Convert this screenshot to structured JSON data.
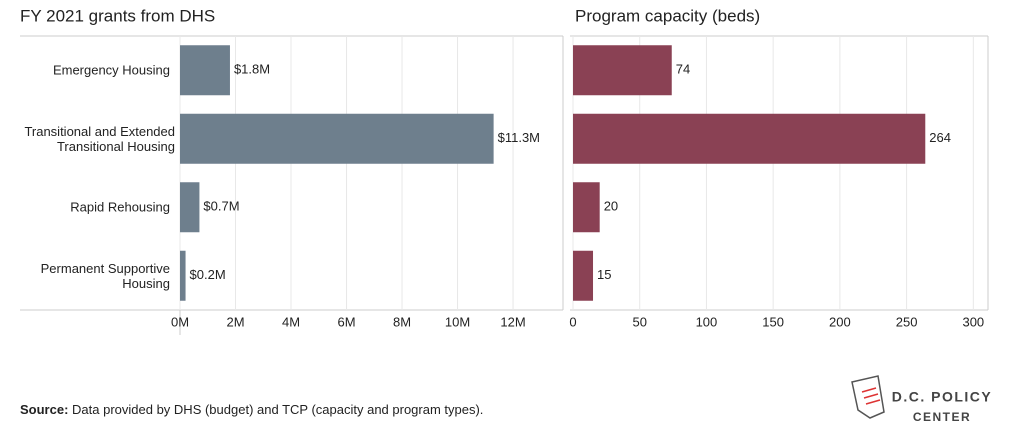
{
  "chart_data": [
    {
      "type": "bar",
      "orientation": "horizontal",
      "title": "FY 2021 grants from DHS",
      "categories": [
        "Emergency Housing",
        "Transitional and Extended Transitional Housing",
        "Rapid Rehousing",
        "Permanent Supportive Housing"
      ],
      "values": [
        1.8,
        11.3,
        0.7,
        0.2
      ],
      "value_labels": [
        "$1.8M",
        "$11.3M",
        "$0.7M",
        "$0.2M"
      ],
      "color": "#6e7f8d",
      "xlim": [
        0,
        13.8
      ],
      "xticks": [
        {
          "value": 0,
          "label": "0M"
        },
        {
          "value": 2,
          "label": "2M"
        },
        {
          "value": 4,
          "label": "4M"
        },
        {
          "value": 6,
          "label": "6M"
        },
        {
          "value": 8,
          "label": "8M"
        },
        {
          "value": 10,
          "label": "10M"
        },
        {
          "value": 12,
          "label": "12M"
        }
      ],
      "grid": true
    },
    {
      "type": "bar",
      "orientation": "horizontal",
      "title": "Program capacity (beds)",
      "values": [
        74,
        264,
        20,
        15
      ],
      "color": "#8a4154",
      "xlim": [
        0,
        311
      ],
      "xticks": [
        0,
        50,
        100,
        150,
        200,
        250,
        300
      ],
      "grid": true
    }
  ],
  "source": {
    "label": "Source:",
    "text": "Data provided by DHS (budget) and TCP (capacity and program types)."
  },
  "logo": {
    "line1": "D.C. POLICY",
    "line2": "CENTER"
  }
}
